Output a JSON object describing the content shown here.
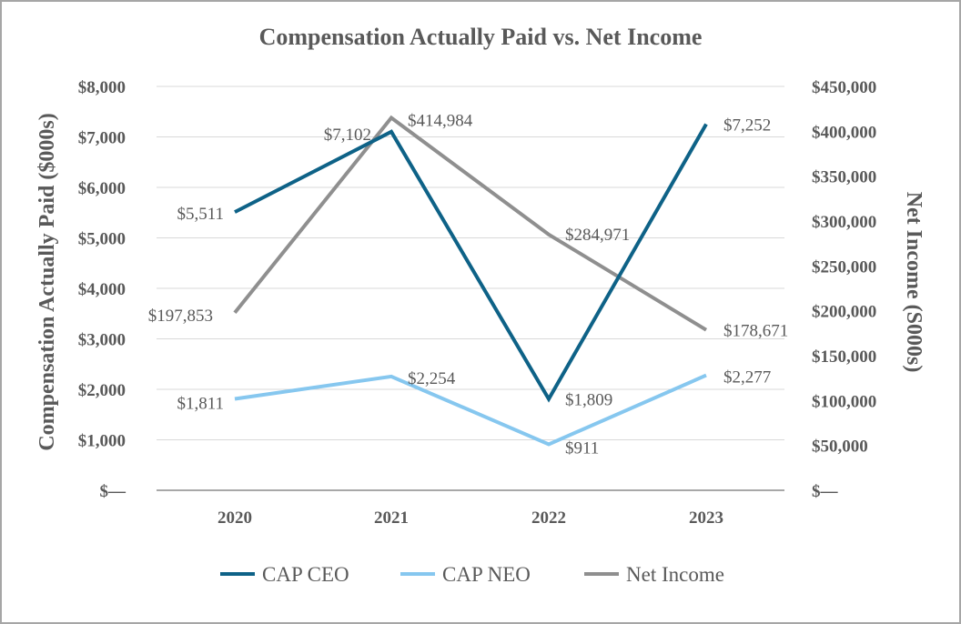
{
  "chart_data": {
    "type": "line",
    "title": "Compensation Actually Paid vs. Net Income",
    "xlabel": "",
    "ylabel": "Compensation Actually Paid ($000s)",
    "y2label": "Net Income (S000s)",
    "categories": [
      "2020",
      "2021",
      "2022",
      "2023"
    ],
    "ylim": [
      0,
      8000
    ],
    "y2lim": [
      0,
      450000
    ],
    "y_ticks": [
      {
        "value": 0,
        "label": "$—"
      },
      {
        "value": 1000,
        "label": "$1,000"
      },
      {
        "value": 2000,
        "label": "$2,000"
      },
      {
        "value": 3000,
        "label": "$3,000"
      },
      {
        "value": 4000,
        "label": "$4,000"
      },
      {
        "value": 5000,
        "label": "$5,000"
      },
      {
        "value": 6000,
        "label": "$6,000"
      },
      {
        "value": 7000,
        "label": "$7,000"
      },
      {
        "value": 8000,
        "label": "$8,000"
      }
    ],
    "y2_ticks": [
      {
        "value": 0,
        "label": "$—"
      },
      {
        "value": 50000,
        "label": "$50,000"
      },
      {
        "value": 100000,
        "label": "$100,000"
      },
      {
        "value": 150000,
        "label": "$150,000"
      },
      {
        "value": 200000,
        "label": "$200,000"
      },
      {
        "value": 250000,
        "label": "$250,000"
      },
      {
        "value": 300000,
        "label": "$300,000"
      },
      {
        "value": 350000,
        "label": "$350,000"
      },
      {
        "value": 400000,
        "label": "$400,000"
      },
      {
        "value": 450000,
        "label": "$450,000"
      }
    ],
    "series": [
      {
        "name": "CAP CEO",
        "axis": "left",
        "color": "#0e6287",
        "values": [
          5511,
          7102,
          1809,
          7252
        ],
        "labels": [
          "$5,511",
          "$7,102",
          "$1,809",
          "$7,252"
        ]
      },
      {
        "name": "CAP NEO",
        "axis": "left",
        "color": "#86c7ef",
        "values": [
          1811,
          2254,
          911,
          2277
        ],
        "labels": [
          "$1,811",
          "$2,254",
          "$911",
          "$2,277"
        ]
      },
      {
        "name": "Net Income",
        "axis": "right",
        "color": "#8f8f8f",
        "values": [
          197853,
          414984,
          284971,
          178671
        ],
        "labels": [
          "$197,853",
          "$414,984",
          "$284,971",
          "$178,671"
        ]
      }
    ],
    "grid": true,
    "legend": "bottom"
  }
}
